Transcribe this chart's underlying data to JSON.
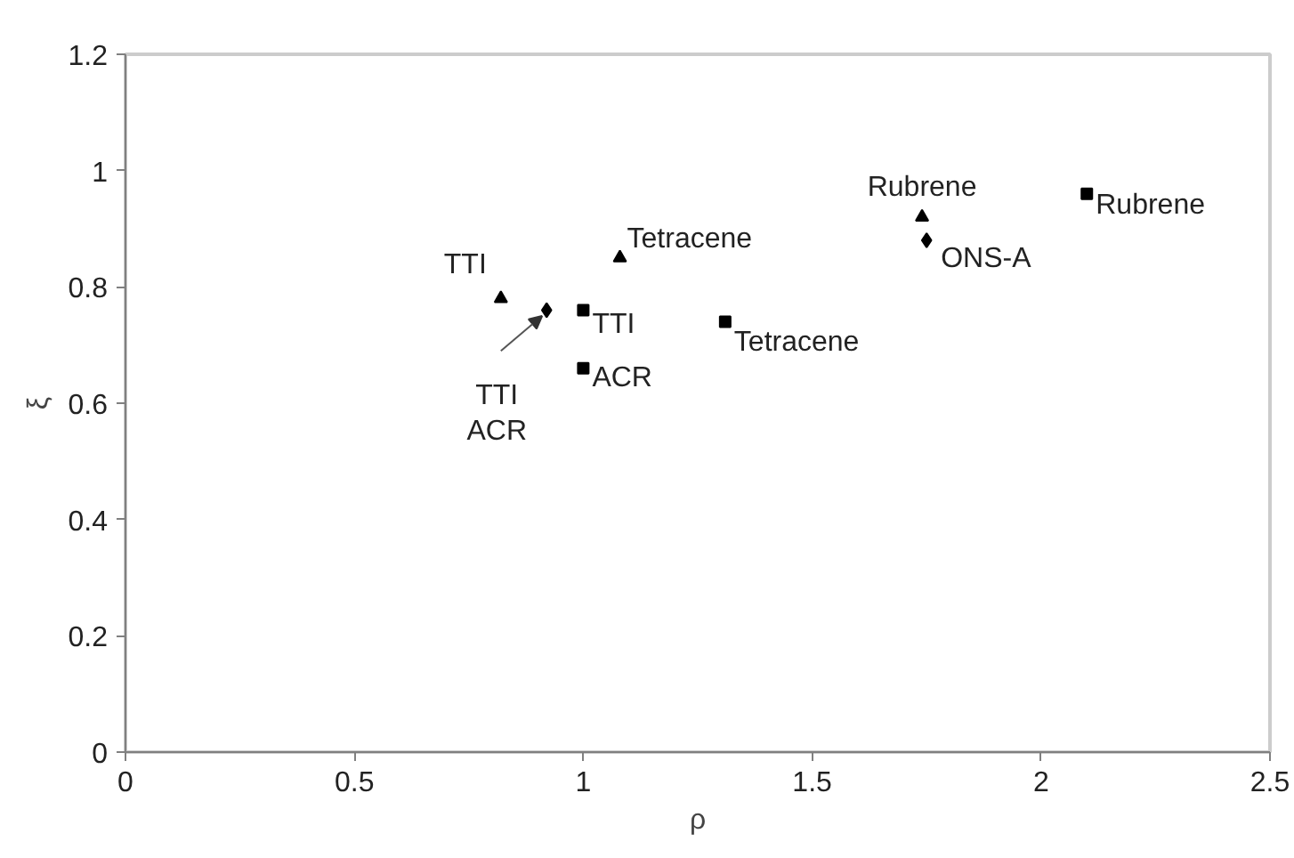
{
  "chart_data": {
    "type": "scatter",
    "xlabel": "ρ",
    "ylabel": "ξ",
    "xlim": [
      0,
      2.5
    ],
    "xticks": [
      0,
      0.5,
      1,
      1.5,
      2,
      2.5
    ],
    "ylim": [
      0,
      1.2
    ],
    "yticks": [
      0,
      0.2,
      0.4,
      0.6,
      0.8,
      1,
      1.2
    ],
    "grid": false,
    "series": [
      {
        "color": "#000000",
        "marker": "square",
        "x": [
          1.0,
          1.0,
          1.31,
          2.1
        ],
        "values": [
          0.76,
          0.66,
          0.74,
          0.96
        ]
      },
      {
        "color": "#000000",
        "marker": "triangle",
        "x": [
          0.82,
          1.08,
          1.74
        ],
        "values": [
          0.78,
          0.85,
          0.92
        ]
      },
      {
        "color": "#000000",
        "marker": "diamond",
        "x": [
          0.92,
          1.75
        ],
        "values": [
          0.76,
          0.88
        ]
      }
    ],
    "annotations": [
      {
        "text": "TTI",
        "x": 0.82,
        "y": 0.78
      },
      {
        "text": "Tetracene",
        "x": 1.08,
        "y": 0.85
      },
      {
        "text": "Rubrene",
        "x": 1.74,
        "y": 0.92
      },
      {
        "text": "TTI\nACR",
        "x": 0.92,
        "y": 0.76
      },
      {
        "text": "ONS-A",
        "x": 1.75,
        "y": 0.88
      },
      {
        "text": "TTI",
        "x": 1.0,
        "y": 0.76
      },
      {
        "text": "ACR",
        "x": 1.0,
        "y": 0.66
      },
      {
        "text": "Tetracene",
        "x": 1.31,
        "y": 0.74
      },
      {
        "text": "Rubrene",
        "x": 2.1,
        "y": 0.96
      }
    ]
  }
}
